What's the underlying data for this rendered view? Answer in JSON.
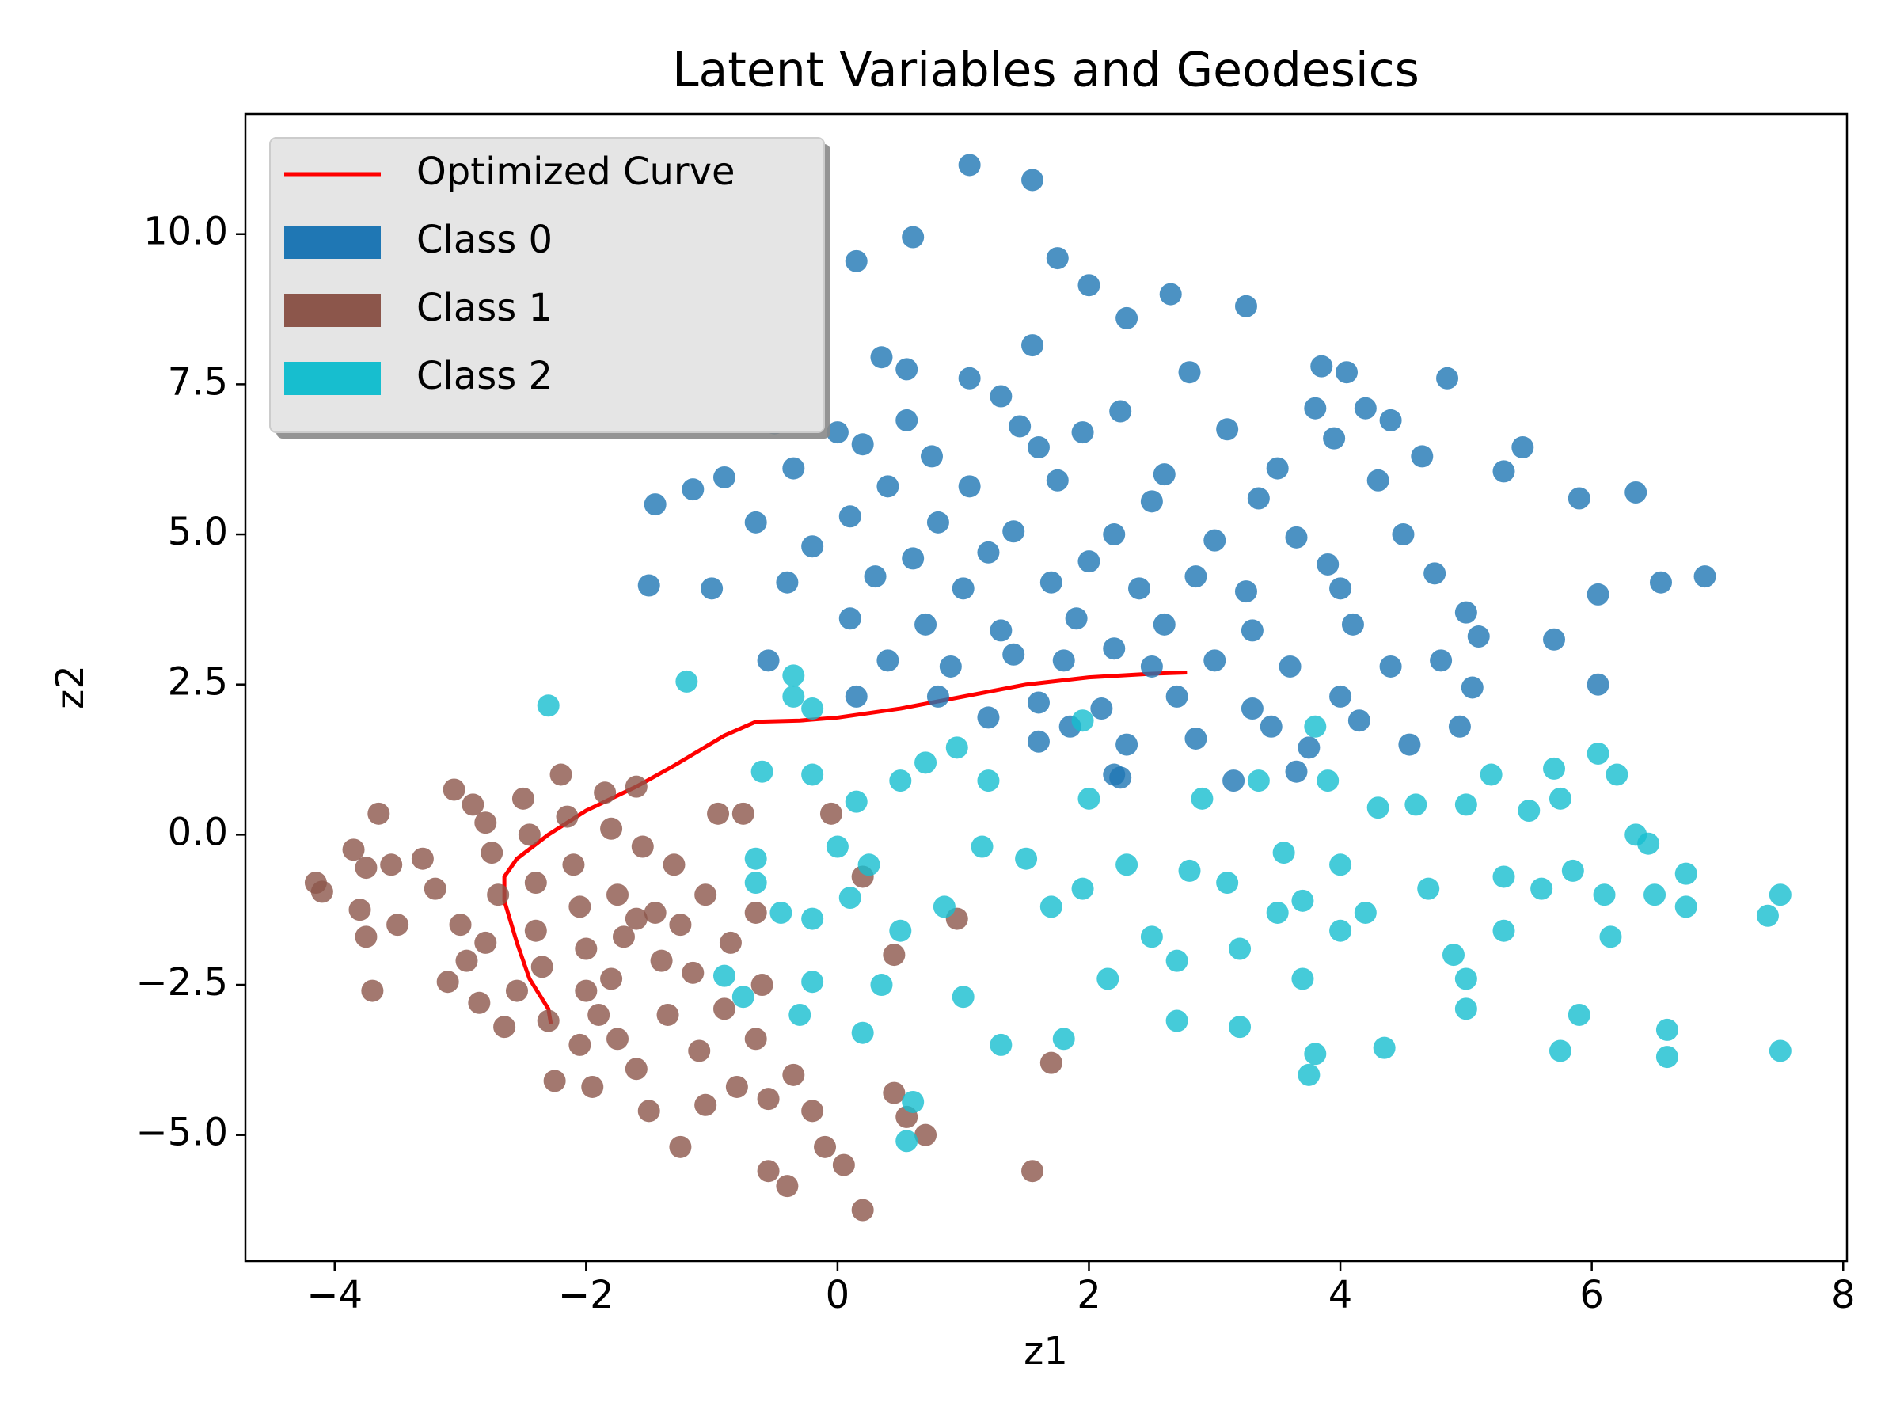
{
  "chart_data": {
    "type": "scatter",
    "title": "Latent Variables and Geodesics",
    "x_label": "z1",
    "y_label": "z2",
    "xlim": [
      -4.71,
      8.03
    ],
    "ylim": [
      -7.1,
      12.0
    ],
    "xticks": [
      {
        "value": -4,
        "label": "−4"
      },
      {
        "value": -2,
        "label": "−2"
      },
      0,
      2,
      4,
      6,
      8
    ],
    "yticks": [
      {
        "value": -5,
        "label": "−5.0"
      },
      {
        "value": -2.5,
        "label": "−2.5"
      },
      {
        "value": 0,
        "label": "0.0"
      },
      2.5,
      {
        "value": 5,
        "label": "5.0"
      },
      7.5,
      {
        "value": 10,
        "label": "10.0"
      }
    ],
    "grid": false,
    "legend": "upper left",
    "series": [
      {
        "name": "Optimized Curve",
        "type": "line",
        "color": "#ff0000",
        "x": [
          2.78,
          2.5,
          2.0,
          1.5,
          1.0,
          0.5,
          0.0,
          -0.3,
          -0.65,
          -0.9,
          -1.3,
          -1.6,
          -2.0,
          -2.3,
          -2.55,
          -2.65,
          -2.65,
          -2.55,
          -2.45,
          -2.3,
          -2.28
        ],
        "y": [
          2.7,
          2.68,
          2.62,
          2.5,
          2.3,
          2.1,
          1.95,
          1.9,
          1.88,
          1.65,
          1.15,
          0.8,
          0.4,
          0.0,
          -0.4,
          -0.7,
          -1.1,
          -1.8,
          -2.4,
          -2.9,
          -3.15
        ]
      },
      {
        "name": "Class 0",
        "type": "scatter",
        "color": "#1f77b4",
        "x": [
          1.05,
          1.55,
          0.6,
          0.15,
          1.75,
          2.0,
          2.65,
          3.25,
          2.3,
          1.55,
          0.35,
          0.55,
          1.05,
          2.8,
          3.85,
          4.05,
          4.85,
          1.3,
          2.25,
          3.8,
          4.2,
          4.4,
          0.0,
          0.55,
          1.45,
          1.95,
          3.1,
          3.95,
          -0.5,
          0.2,
          0.75,
          1.6,
          2.6,
          3.5,
          4.65,
          5.45,
          -0.35,
          -0.9,
          0.4,
          1.05,
          1.75,
          2.5,
          3.35,
          4.3,
          5.3,
          6.35,
          5.9,
          -1.45,
          -1.15,
          -0.65,
          0.1,
          0.8,
          1.4,
          2.2,
          3.0,
          3.65,
          4.5,
          -0.2,
          0.6,
          1.2,
          2.0,
          2.85,
          3.9,
          4.75,
          -1.5,
          -1.0,
          -0.4,
          0.3,
          1.0,
          1.7,
          2.4,
          3.25,
          4.0,
          5.0,
          6.05,
          6.55,
          6.9,
          0.1,
          0.7,
          1.3,
          1.9,
          2.6,
          3.3,
          4.1,
          5.1,
          5.7,
          0.4,
          0.9,
          1.4,
          1.8,
          2.2,
          2.5,
          3.0,
          3.6,
          4.4,
          4.8,
          0.8,
          1.6,
          2.1,
          2.7,
          3.3,
          4.0,
          5.05,
          6.05,
          1.2,
          1.85,
          2.85,
          3.45,
          4.15,
          4.95,
          1.6,
          2.3,
          3.75,
          4.55,
          2.2,
          3.65,
          2.25,
          3.15,
          0.15,
          -0.55
        ],
        "y": [
          11.15,
          10.9,
          9.95,
          9.55,
          9.6,
          9.15,
          9.0,
          8.8,
          8.6,
          8.15,
          7.95,
          7.75,
          7.6,
          7.7,
          7.8,
          7.7,
          7.6,
          7.3,
          7.05,
          7.1,
          7.1,
          6.9,
          6.7,
          6.9,
          6.8,
          6.7,
          6.75,
          6.6,
          6.85,
          6.5,
          6.3,
          6.45,
          6.0,
          6.1,
          6.3,
          6.45,
          6.1,
          5.95,
          5.8,
          5.8,
          5.9,
          5.55,
          5.6,
          5.9,
          6.05,
          5.7,
          5.6,
          5.5,
          5.75,
          5.2,
          5.3,
          5.2,
          5.05,
          5.0,
          4.9,
          4.95,
          5.0,
          4.8,
          4.6,
          4.7,
          4.55,
          4.3,
          4.5,
          4.35,
          4.15,
          4.1,
          4.2,
          4.3,
          4.1,
          4.2,
          4.1,
          4.05,
          4.1,
          3.7,
          4.0,
          4.2,
          4.3,
          3.6,
          3.5,
          3.4,
          3.6,
          3.5,
          3.4,
          3.5,
          3.3,
          3.25,
          2.9,
          2.8,
          3.0,
          2.9,
          3.1,
          2.8,
          2.9,
          2.8,
          2.8,
          2.9,
          2.3,
          2.2,
          2.1,
          2.3,
          2.1,
          2.3,
          2.45,
          2.5,
          1.95,
          1.8,
          1.6,
          1.8,
          1.9,
          1.8,
          1.55,
          1.5,
          1.45,
          1.5,
          1.0,
          1.05,
          0.95,
          0.9,
          2.3,
          2.9
        ]
      },
      {
        "name": "Class 1",
        "type": "scatter",
        "color": "#8c564b",
        "x": [
          -4.15,
          -4.1,
          -3.85,
          -3.65,
          -3.75,
          -3.55,
          -3.8,
          -3.75,
          -3.7,
          -3.5,
          -3.3,
          -3.2,
          -3.05,
          -3.0,
          -3.1,
          -2.9,
          -2.8,
          -2.75,
          -2.7,
          -2.8,
          -2.85,
          -2.65,
          -2.5,
          -2.45,
          -2.4,
          -2.4,
          -2.35,
          -2.3,
          -2.2,
          -2.15,
          -2.1,
          -2.05,
          -2.0,
          -2.0,
          -2.05,
          -1.95,
          -1.85,
          -1.8,
          -1.75,
          -1.7,
          -1.8,
          -1.75,
          -1.6,
          -1.6,
          -1.55,
          -1.45,
          -1.4,
          -1.35,
          -1.5,
          -1.25,
          -1.15,
          -1.1,
          -1.05,
          -1.25,
          -0.95,
          -0.75,
          -0.85,
          -0.9,
          -0.8,
          -0.65,
          -0.6,
          -0.65,
          -0.55,
          -0.55,
          -0.4,
          -0.35,
          -0.2,
          -0.1,
          0.05,
          0.2,
          -0.05,
          0.2,
          0.45,
          0.45,
          0.55,
          0.7,
          0.95,
          1.7,
          1.55,
          -1.6,
          -2.95,
          -2.55,
          -1.9,
          -2.25,
          -1.3,
          -1.05
        ],
        "y": [
          -0.8,
          -0.95,
          -0.25,
          0.35,
          -0.55,
          -0.5,
          -1.25,
          -1.7,
          -2.6,
          -1.5,
          -0.4,
          -0.9,
          0.75,
          -1.5,
          -2.45,
          0.5,
          0.2,
          -0.3,
          -1.0,
          -1.8,
          -2.8,
          -3.2,
          0.6,
          0.0,
          -0.8,
          -1.6,
          -2.2,
          -3.1,
          1.0,
          0.3,
          -0.5,
          -1.2,
          -1.9,
          -2.6,
          -3.5,
          -4.2,
          0.7,
          0.1,
          -1.0,
          -1.7,
          -2.4,
          -3.4,
          -3.9,
          0.8,
          -0.2,
          -1.3,
          -2.1,
          -3.0,
          -4.6,
          -1.5,
          -2.3,
          -3.6,
          -4.5,
          -5.2,
          0.35,
          0.35,
          -1.8,
          -2.9,
          -4.2,
          -1.3,
          -2.5,
          -3.4,
          -4.4,
          -5.6,
          -5.85,
          -4.0,
          -4.6,
          -5.2,
          -5.5,
          -6.25,
          0.35,
          -0.7,
          -2.0,
          -4.3,
          -4.7,
          -5.0,
          -1.4,
          -3.8,
          -5.6,
          -1.4,
          -2.1,
          -2.6,
          -3.0,
          -4.1,
          -0.5,
          -1.0
        ]
      },
      {
        "name": "Class 2",
        "type": "scatter",
        "color": "#17becf",
        "x": [
          -2.3,
          -1.2,
          -0.35,
          -0.35,
          -0.2,
          -0.6,
          -0.2,
          0.15,
          -0.65,
          -0.65,
          -0.45,
          -0.2,
          0.1,
          -0.2,
          0.0,
          -0.3,
          -0.9,
          -0.75,
          0.2,
          0.35,
          0.5,
          0.5,
          0.7,
          0.95,
          1.2,
          1.5,
          1.7,
          1.3,
          1.8,
          1.95,
          2.0,
          2.3,
          2.5,
          2.7,
          2.7,
          2.9,
          3.1,
          3.2,
          3.2,
          3.35,
          3.55,
          3.7,
          3.7,
          3.8,
          3.75,
          3.8,
          3.9,
          4.0,
          4.2,
          4.35,
          4.3,
          4.6,
          4.7,
          4.9,
          5.0,
          5.0,
          5.0,
          5.2,
          5.3,
          5.3,
          5.5,
          5.6,
          5.7,
          5.75,
          5.85,
          5.9,
          5.75,
          6.05,
          6.2,
          6.1,
          6.15,
          6.35,
          6.45,
          6.5,
          6.6,
          6.6,
          6.75,
          6.75,
          7.4,
          7.5,
          7.5,
          0.55,
          0.6,
          0.85,
          1.0,
          1.15,
          2.15,
          3.5,
          2.8,
          0.25,
          1.95,
          4.0
        ],
        "y": [
          2.15,
          2.55,
          2.65,
          2.3,
          2.1,
          1.05,
          1.0,
          0.55,
          -0.4,
          -0.8,
          -1.3,
          -1.4,
          -1.05,
          -2.45,
          -0.2,
          -3.0,
          -2.35,
          -2.7,
          -3.3,
          -2.5,
          -1.6,
          0.9,
          1.2,
          1.45,
          0.9,
          -0.4,
          -1.2,
          -3.5,
          -3.4,
          1.9,
          0.6,
          -0.5,
          -1.7,
          -2.1,
          -3.1,
          0.6,
          -0.8,
          -1.9,
          -3.2,
          0.9,
          -0.3,
          -1.1,
          -2.4,
          -3.65,
          -4.0,
          1.8,
          0.9,
          -0.5,
          -1.3,
          -3.55,
          0.45,
          0.5,
          -0.9,
          -2.0,
          -2.4,
          -2.9,
          0.5,
          1.0,
          -0.7,
          -1.6,
          0.4,
          -0.9,
          1.1,
          0.6,
          -0.6,
          -3.0,
          -3.6,
          1.35,
          1.0,
          -1.0,
          -1.7,
          0.0,
          -0.15,
          -1.0,
          -3.25,
          -3.7,
          -0.65,
          -1.2,
          -1.35,
          -1.0,
          -3.6,
          -5.1,
          -4.45,
          -1.2,
          -2.7,
          -0.2,
          -2.4,
          -1.3,
          -0.6,
          -0.5,
          -0.9,
          -1.6
        ]
      }
    ]
  }
}
